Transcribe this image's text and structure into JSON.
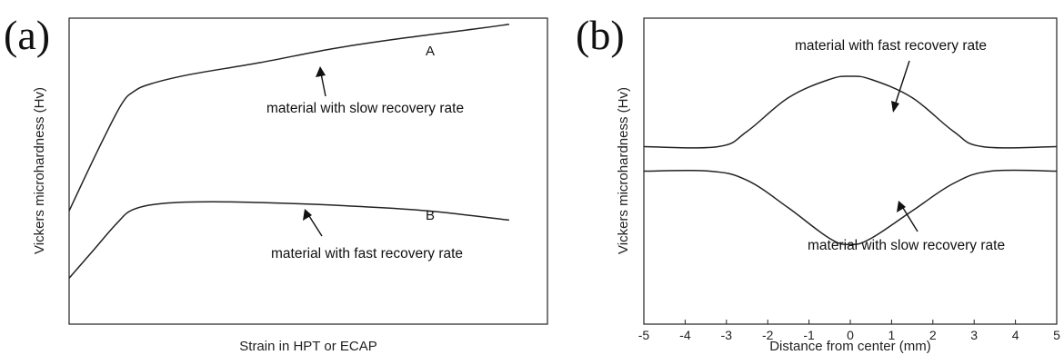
{
  "chart_data": [
    {
      "type": "line",
      "panel_label": "(a)",
      "xlabel": "Strain in HPT or ECAP",
      "ylabel": "Vickers microhardness (Hv)",
      "x_ticks_shown": false,
      "y_ticks_shown": false,
      "xlim": [
        0,
        1
      ],
      "ylim": [
        0,
        1
      ],
      "series": [
        {
          "name": "A",
          "x": [
            0,
            0.03,
            0.07,
            0.11,
            0.135,
            0.17,
            0.25,
            0.4,
            0.55,
            0.7,
            0.85,
            0.92
          ],
          "y": [
            0.37,
            0.47,
            0.6,
            0.72,
            0.76,
            0.785,
            0.815,
            0.855,
            0.9,
            0.935,
            0.965,
            0.98
          ]
        },
        {
          "name": "B",
          "x": [
            0,
            0.05,
            0.1,
            0.135,
            0.2,
            0.3,
            0.45,
            0.6,
            0.75,
            0.92
          ],
          "y": [
            0.15,
            0.24,
            0.33,
            0.375,
            0.395,
            0.4,
            0.395,
            0.385,
            0.37,
            0.34
          ]
        }
      ],
      "annotations": [
        {
          "text": "material with slow recovery rate",
          "target_series": "A"
        },
        {
          "text": "material with fast recovery rate",
          "target_series": "B"
        }
      ]
    },
    {
      "type": "line",
      "panel_label": "(b)",
      "xlabel": "Distance from center (mm)",
      "ylabel": "Vickers microhardness (Hv)",
      "xlim": [
        -5,
        5
      ],
      "x_ticks": [
        -5,
        -4,
        -3,
        -2,
        -1,
        0,
        1,
        2,
        3,
        4,
        5
      ],
      "y_ticks_shown": false,
      "ylim": [
        0,
        1
      ],
      "series": [
        {
          "name": "material with fast recovery rate",
          "x": [
            -5,
            -3.2,
            -2.5,
            -1.5,
            -0.5,
            0,
            0.5,
            1.5,
            2.5,
            3.2,
            5
          ],
          "y": [
            0.58,
            0.58,
            0.63,
            0.74,
            0.8,
            0.81,
            0.8,
            0.74,
            0.63,
            0.58,
            0.58
          ]
        },
        {
          "name": "material with slow recovery rate",
          "x": [
            -5,
            -3.4,
            -2.5,
            -1.5,
            -0.5,
            0,
            0.5,
            1.5,
            2.5,
            3.4,
            5
          ],
          "y": [
            0.5,
            0.5,
            0.47,
            0.38,
            0.28,
            0.26,
            0.28,
            0.37,
            0.46,
            0.5,
            0.5
          ]
        }
      ],
      "annotations": [
        {
          "text": "material with fast recovery rate",
          "target_series": "material with fast recovery rate"
        },
        {
          "text": "material with slow recovery rate",
          "target_series": "material with slow recovery rate"
        }
      ]
    }
  ]
}
